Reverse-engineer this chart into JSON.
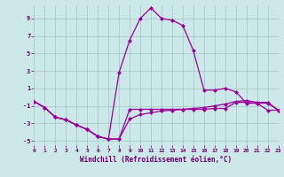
{
  "xlabel": "Windchill (Refroidissement éolien,°C)",
  "bg_color": "#cce8e8",
  "grid_color": "#aacccc",
  "line_color": "#990099",
  "xlim": [
    0,
    23
  ],
  "ylim": [
    -5.5,
    10.5
  ],
  "xticks": [
    0,
    1,
    2,
    3,
    4,
    5,
    6,
    7,
    8,
    9,
    10,
    11,
    12,
    13,
    14,
    15,
    16,
    17,
    18,
    19,
    20,
    21,
    22,
    23
  ],
  "yticks": [
    -5,
    -3,
    -1,
    1,
    3,
    5,
    7,
    9
  ],
  "line_peak_x": [
    0,
    1,
    2,
    3,
    4,
    5,
    6,
    7,
    8,
    9,
    10,
    11,
    12,
    13,
    14,
    15,
    16,
    17,
    18,
    19,
    20,
    21,
    22,
    23
  ],
  "line_peak_y": [
    -0.5,
    -1.2,
    -2.3,
    -2.6,
    -3.2,
    -3.7,
    -4.5,
    -4.8,
    2.8,
    6.5,
    9.0,
    10.2,
    9.0,
    8.8,
    8.2,
    5.3,
    0.8,
    0.8,
    1.0,
    0.6,
    -0.7,
    -0.7,
    -1.5,
    -1.5
  ],
  "line_flat_x": [
    0,
    1,
    2,
    3,
    4,
    5,
    6,
    7,
    8,
    9,
    10,
    11,
    12,
    13,
    14,
    15,
    16,
    17,
    18,
    19,
    20,
    21,
    22,
    23
  ],
  "line_flat_y": [
    -0.5,
    -1.2,
    -2.3,
    -2.6,
    -3.2,
    -3.7,
    -4.5,
    -4.8,
    -4.8,
    -1.4,
    -1.4,
    -1.4,
    -1.4,
    -1.4,
    -1.4,
    -1.4,
    -1.4,
    -1.3,
    -1.3,
    -0.6,
    -0.6,
    -0.7,
    -0.7,
    -1.5
  ],
  "line_mid_x": [
    0,
    1,
    2,
    3,
    4,
    5,
    6,
    7,
    8,
    9,
    10,
    11,
    12,
    13,
    14,
    15,
    16,
    17,
    18,
    19,
    20,
    21,
    22,
    23
  ],
  "line_mid_y": [
    -0.5,
    -1.2,
    -2.3,
    -2.6,
    -3.2,
    -3.7,
    -4.5,
    -4.8,
    -4.8,
    -2.5,
    -2.0,
    -1.8,
    -1.6,
    -1.5,
    -1.4,
    -1.3,
    -1.2,
    -1.0,
    -0.8,
    -0.5,
    -0.4,
    -0.6,
    -0.6,
    -1.5
  ]
}
